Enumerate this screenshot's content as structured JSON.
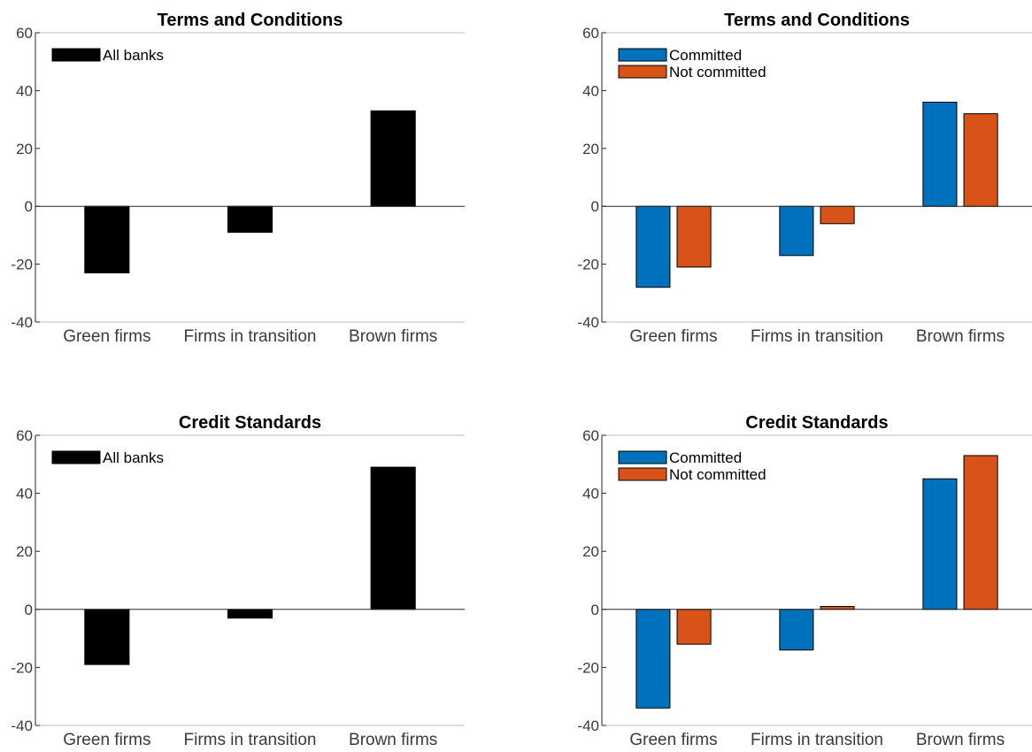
{
  "chart_data": [
    {
      "type": "bar",
      "title": "Terms and Conditions",
      "categories": [
        "Green firms",
        "Firms in transition",
        "Brown firms"
      ],
      "series": [
        {
          "name": "All banks",
          "values": [
            -23,
            -9,
            33
          ],
          "color": "#000000"
        }
      ],
      "ylim": [
        -40,
        60
      ],
      "yticks": [
        -40,
        -20,
        0,
        20,
        40,
        60
      ],
      "legend": "top-left",
      "grid": false
    },
    {
      "type": "bar",
      "title": "Terms and Conditions",
      "categories": [
        "Green firms",
        "Firms in transition",
        "Brown firms"
      ],
      "series": [
        {
          "name": "Committed",
          "values": [
            -28,
            -17,
            36
          ],
          "color": "#0072bd"
        },
        {
          "name": "Not committed",
          "values": [
            -21,
            -6,
            32
          ],
          "color": "#d95319"
        }
      ],
      "ylim": [
        -40,
        60
      ],
      "yticks": [
        -40,
        -20,
        0,
        20,
        40,
        60
      ],
      "legend": "top-left",
      "grid": false
    },
    {
      "type": "bar",
      "title": "Credit Standards",
      "categories": [
        "Green firms",
        "Firms in transition",
        "Brown firms"
      ],
      "series": [
        {
          "name": "All banks",
          "values": [
            -19,
            -3,
            49
          ],
          "color": "#000000"
        }
      ],
      "ylim": [
        -40,
        60
      ],
      "yticks": [
        -40,
        -20,
        0,
        20,
        40,
        60
      ],
      "legend": "top-left",
      "grid": false
    },
    {
      "type": "bar",
      "title": "Credit Standards",
      "categories": [
        "Green firms",
        "Firms in transition",
        "Brown firms"
      ],
      "series": [
        {
          "name": "Committed",
          "values": [
            -34,
            -14,
            45
          ],
          "color": "#0072bd"
        },
        {
          "name": "Not committed",
          "values": [
            -12,
            1,
            53
          ],
          "color": "#d95319"
        }
      ],
      "ylim": [
        -40,
        60
      ],
      "yticks": [
        -40,
        -20,
        0,
        20,
        40,
        60
      ],
      "legend": "top-left",
      "grid": false
    }
  ]
}
